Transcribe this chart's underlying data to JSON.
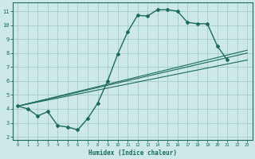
{
  "xlabel": "Humidex (Indice chaleur)",
  "ylabel": "",
  "bg_color": "#cce8e8",
  "grid_color": "#aacece",
  "line_color": "#1a6b5a",
  "xlim": [
    -0.5,
    23.5
  ],
  "ylim": [
    1.8,
    11.6
  ],
  "xticks": [
    0,
    1,
    2,
    3,
    4,
    5,
    6,
    7,
    8,
    9,
    10,
    11,
    12,
    13,
    14,
    15,
    16,
    17,
    18,
    19,
    20,
    21,
    22,
    23
  ],
  "yticks": [
    2,
    3,
    4,
    5,
    6,
    7,
    8,
    9,
    10,
    11
  ],
  "curve_x": [
    0,
    1,
    2,
    3,
    4,
    5,
    6,
    7,
    8,
    9,
    10,
    11,
    12,
    13,
    14,
    15,
    16,
    17,
    18,
    19,
    20,
    21
  ],
  "curve_y": [
    4.2,
    4.0,
    3.5,
    3.8,
    2.8,
    2.7,
    2.5,
    3.3,
    4.4,
    6.0,
    7.9,
    9.5,
    10.7,
    10.65,
    11.1,
    11.1,
    11.0,
    10.2,
    10.1,
    10.1,
    8.5,
    7.5
  ],
  "line1_x": [
    0,
    23
  ],
  "line1_y": [
    4.2,
    7.5
  ],
  "line2_x": [
    0,
    23
  ],
  "line2_y": [
    4.2,
    8.0
  ],
  "line3_x": [
    0,
    23
  ],
  "line3_y": [
    4.2,
    8.2
  ]
}
